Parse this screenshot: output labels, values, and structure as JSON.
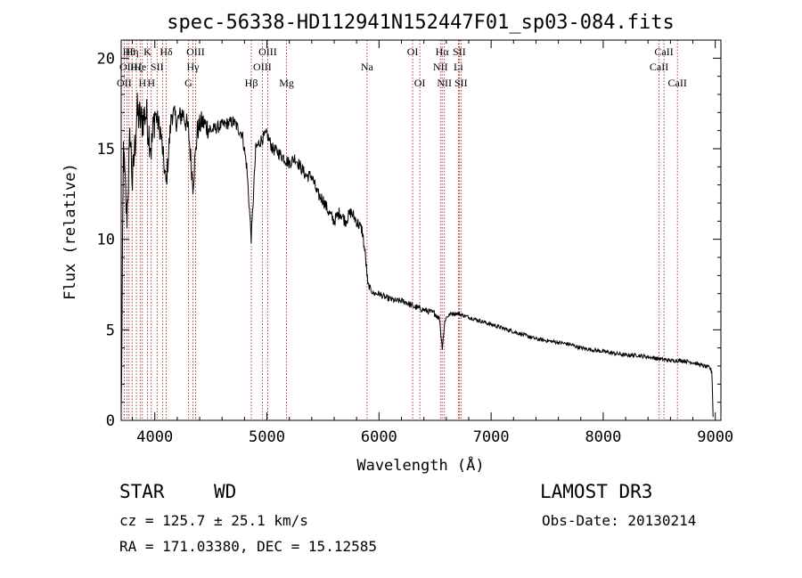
{
  "chart_data": {
    "type": "line",
    "title": "spec-56338-HD112941N152447F01_sp03-084.fits",
    "xlabel": "Wavelength (Å)",
    "ylabel": "Flux (relative)",
    "xlim": [
      3700,
      9050
    ],
    "ylim": [
      0,
      21
    ],
    "xticks": [
      4000,
      5000,
      6000,
      7000,
      8000,
      9000
    ],
    "yticks": [
      0,
      5,
      10,
      15,
      20
    ],
    "xtick_labels": [
      "4000",
      "5000",
      "6000",
      "7000",
      "8000",
      "9000"
    ],
    "ytick_labels": [
      "0",
      "5",
      "10",
      "15",
      "20"
    ],
    "grid": false,
    "series": [
      {
        "x": [
          3700,
          3705,
          3720,
          3750,
          3780,
          3800,
          3840,
          3880,
          3920,
          3970,
          4000,
          4050,
          4101,
          4150,
          4200,
          4250,
          4300,
          4340,
          4380,
          4420,
          4500,
          4600,
          4700,
          4780,
          4820,
          4861,
          4900,
          4950,
          5000,
          5050,
          5100,
          5150,
          5200,
          5250,
          5300,
          5350,
          5400,
          5450,
          5500,
          5550,
          5600,
          5650,
          5700,
          5750,
          5800,
          5850,
          5880,
          5900,
          5950,
          6000,
          6050,
          6100,
          6150,
          6200,
          6250,
          6300,
          6350,
          6400,
          6450,
          6500,
          6540,
          6563,
          6590,
          6620,
          6650,
          6700,
          6750,
          6800,
          6900,
          7000,
          7100,
          7200,
          7300,
          7400,
          7500,
          7600,
          7700,
          7800,
          7900,
          8000,
          8100,
          8200,
          8300,
          8400,
          8500,
          8600,
          8700,
          8800,
          8900,
          8950,
          8970,
          8980
        ],
        "y": [
          0.2,
          3.5,
          15,
          11,
          16,
          13,
          17,
          16.5,
          17,
          15,
          17,
          16,
          13,
          17,
          16.5,
          17,
          16,
          13,
          16,
          16.5,
          16,
          16.3,
          16.5,
          15.8,
          14,
          10,
          15,
          15.5,
          15.8,
          15,
          14.8,
          14.5,
          14.2,
          14.5,
          14,
          13.5,
          13.5,
          12.5,
          12.2,
          11.5,
          11,
          11.5,
          11,
          11.5,
          11,
          10.5,
          9,
          7.5,
          7,
          7,
          6.8,
          6.7,
          6.6,
          6.6,
          6.5,
          6.3,
          6.2,
          6.1,
          6.0,
          5.9,
          5.6,
          4.0,
          5.6,
          5.8,
          5.9,
          5.9,
          5.8,
          5.7,
          5.5,
          5.3,
          5.1,
          4.9,
          4.7,
          4.5,
          4.4,
          4.3,
          4.2,
          4.0,
          3.9,
          3.8,
          3.7,
          3.6,
          3.6,
          3.5,
          3.4,
          3.3,
          3.3,
          3.2,
          3.0,
          2.9,
          2.7,
          0.2
        ]
      }
    ],
    "lines": [
      {
        "x": 3727,
        "label": "OII",
        "row": 3
      },
      {
        "x": 3750,
        "label": "OII",
        "row": 2
      },
      {
        "x": 3770,
        "label": "Hθ",
        "row": 1
      },
      {
        "x": 3797,
        "label": "Hη",
        "row": 1
      },
      {
        "x": 3835,
        "label": "Hζ",
        "row": 2
      },
      {
        "x": 3869,
        "label": "He",
        "row": 2
      },
      {
        "x": 3889,
        "label": "H",
        "row": 3
      },
      {
        "x": 3934,
        "label": "K",
        "row": 1
      },
      {
        "x": 3968,
        "label": "H",
        "row": 3
      },
      {
        "x": 4020,
        "label": "SII",
        "row": 2
      },
      {
        "x": 4071,
        "label": "",
        "row": 0
      },
      {
        "x": 4102,
        "label": "Hδ",
        "row": 1
      },
      {
        "x": 4300,
        "label": "G",
        "row": 3
      },
      {
        "x": 4340,
        "label": "Hγ",
        "row": 2
      },
      {
        "x": 4363,
        "label": "OIII",
        "row": 1
      },
      {
        "x": 4861,
        "label": "Hβ",
        "row": 3
      },
      {
        "x": 4959,
        "label": "OIII",
        "row": 2
      },
      {
        "x": 5007,
        "label": "OIII",
        "row": 1
      },
      {
        "x": 5175,
        "label": "Mg",
        "row": 3
      },
      {
        "x": 5893,
        "label": "Na",
        "row": 2
      },
      {
        "x": 6300,
        "label": "OI",
        "row": 1
      },
      {
        "x": 6364,
        "label": "OI",
        "row": 3
      },
      {
        "x": 6548,
        "label": "NII",
        "row": 2
      },
      {
        "x": 6563,
        "label": "Hα",
        "row": 1
      },
      {
        "x": 6583,
        "label": "NII",
        "row": 3
      },
      {
        "x": 6708,
        "label": "Li",
        "row": 2
      },
      {
        "x": 6716,
        "label": "SII",
        "row": 1
      },
      {
        "x": 6731,
        "label": "SII",
        "row": 3
      },
      {
        "x": 8498,
        "label": "CaII",
        "row": 2
      },
      {
        "x": 8542,
        "label": "CaII",
        "row": 1
      },
      {
        "x": 8662,
        "label": "CaII",
        "row": 3
      }
    ]
  },
  "info": {
    "object_class": "STAR",
    "subclass": "WD",
    "survey": "LAMOST DR3",
    "cz": "cz = 125.7 ± 25.1 km/s",
    "obs_date": "Obs-Date: 20130214",
    "coords": "RA = 171.03380, DEC =  15.12585"
  }
}
